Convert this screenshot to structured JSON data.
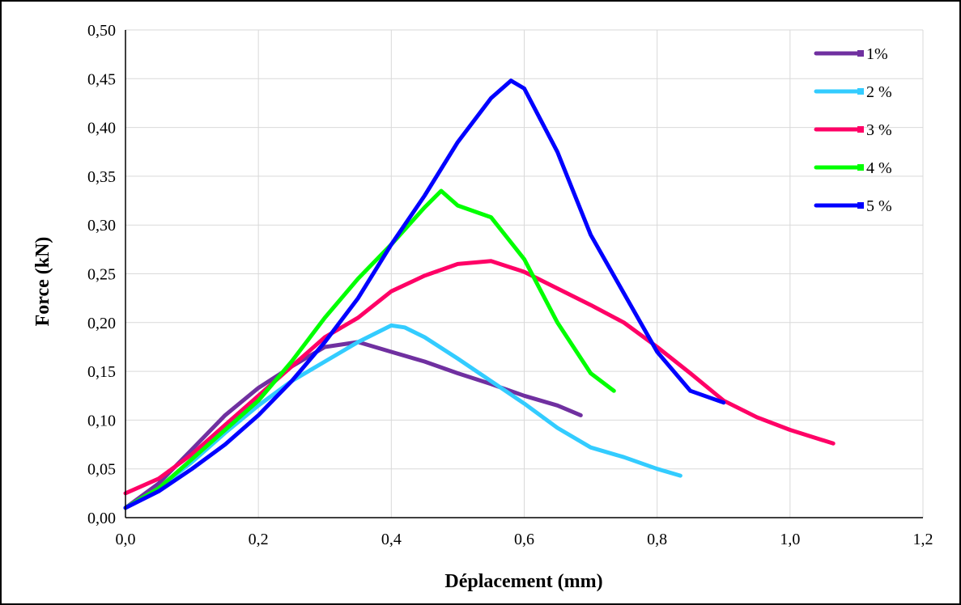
{
  "chart_data": {
    "type": "line",
    "title": "",
    "xlabel": "Déplacement (mm)",
    "ylabel": "Force (kN)",
    "xlim": [
      0,
      1.2
    ],
    "ylim": [
      0,
      0.5
    ],
    "x_ticks": [
      "0,0",
      "0,2",
      "0,4",
      "0,6",
      "0,8",
      "1,0",
      "1,2"
    ],
    "y_ticks": [
      "0,00",
      "0,05",
      "0,10",
      "0,15",
      "0,20",
      "0,25",
      "0,30",
      "0,35",
      "0,40",
      "0,45",
      "0,50"
    ],
    "grid": true,
    "legend_position": "top-right",
    "series": [
      {
        "name": "1%",
        "color": "#7030a0",
        "points": [
          [
            0.0,
            0.01
          ],
          [
            0.05,
            0.035
          ],
          [
            0.1,
            0.07
          ],
          [
            0.15,
            0.105
          ],
          [
            0.2,
            0.133
          ],
          [
            0.25,
            0.155
          ],
          [
            0.3,
            0.175
          ],
          [
            0.35,
            0.18
          ],
          [
            0.4,
            0.17
          ],
          [
            0.45,
            0.16
          ],
          [
            0.5,
            0.148
          ],
          [
            0.55,
            0.137
          ],
          [
            0.6,
            0.125
          ],
          [
            0.65,
            0.115
          ],
          [
            0.685,
            0.105
          ]
        ]
      },
      {
        "name": "2 %",
        "color": "#33ccff",
        "points": [
          [
            0.0,
            0.01
          ],
          [
            0.05,
            0.03
          ],
          [
            0.1,
            0.057
          ],
          [
            0.15,
            0.087
          ],
          [
            0.2,
            0.115
          ],
          [
            0.25,
            0.14
          ],
          [
            0.3,
            0.16
          ],
          [
            0.35,
            0.18
          ],
          [
            0.4,
            0.197
          ],
          [
            0.42,
            0.195
          ],
          [
            0.45,
            0.185
          ],
          [
            0.5,
            0.163
          ],
          [
            0.55,
            0.14
          ],
          [
            0.6,
            0.117
          ],
          [
            0.65,
            0.092
          ],
          [
            0.7,
            0.072
          ],
          [
            0.75,
            0.062
          ],
          [
            0.8,
            0.05
          ],
          [
            0.835,
            0.043
          ]
        ]
      },
      {
        "name": "3 %",
        "color": "#ff0066",
        "points": [
          [
            0.0,
            0.025
          ],
          [
            0.05,
            0.04
          ],
          [
            0.1,
            0.065
          ],
          [
            0.15,
            0.095
          ],
          [
            0.2,
            0.125
          ],
          [
            0.25,
            0.155
          ],
          [
            0.3,
            0.185
          ],
          [
            0.35,
            0.205
          ],
          [
            0.4,
            0.232
          ],
          [
            0.45,
            0.248
          ],
          [
            0.5,
            0.26
          ],
          [
            0.55,
            0.263
          ],
          [
            0.6,
            0.252
          ],
          [
            0.65,
            0.235
          ],
          [
            0.7,
            0.218
          ],
          [
            0.75,
            0.2
          ],
          [
            0.8,
            0.175
          ],
          [
            0.85,
            0.148
          ],
          [
            0.9,
            0.12
          ],
          [
            0.95,
            0.103
          ],
          [
            1.0,
            0.09
          ],
          [
            1.065,
            0.076
          ]
        ]
      },
      {
        "name": "4 %",
        "color": "#00ff00",
        "points": [
          [
            0.0,
            0.01
          ],
          [
            0.05,
            0.03
          ],
          [
            0.1,
            0.06
          ],
          [
            0.15,
            0.09
          ],
          [
            0.2,
            0.12
          ],
          [
            0.25,
            0.16
          ],
          [
            0.3,
            0.205
          ],
          [
            0.35,
            0.245
          ],
          [
            0.4,
            0.28
          ],
          [
            0.45,
            0.318
          ],
          [
            0.475,
            0.335
          ],
          [
            0.5,
            0.32
          ],
          [
            0.55,
            0.308
          ],
          [
            0.6,
            0.265
          ],
          [
            0.65,
            0.2
          ],
          [
            0.7,
            0.148
          ],
          [
            0.735,
            0.13
          ]
        ]
      },
      {
        "name": "5 %",
        "color": "#0000ff",
        "points": [
          [
            0.0,
            0.01
          ],
          [
            0.05,
            0.027
          ],
          [
            0.1,
            0.05
          ],
          [
            0.15,
            0.075
          ],
          [
            0.2,
            0.105
          ],
          [
            0.25,
            0.14
          ],
          [
            0.3,
            0.18
          ],
          [
            0.35,
            0.225
          ],
          [
            0.4,
            0.28
          ],
          [
            0.45,
            0.33
          ],
          [
            0.5,
            0.385
          ],
          [
            0.55,
            0.43
          ],
          [
            0.58,
            0.448
          ],
          [
            0.6,
            0.44
          ],
          [
            0.65,
            0.375
          ],
          [
            0.7,
            0.29
          ],
          [
            0.75,
            0.23
          ],
          [
            0.8,
            0.17
          ],
          [
            0.85,
            0.13
          ],
          [
            0.9,
            0.118
          ]
        ]
      }
    ]
  }
}
